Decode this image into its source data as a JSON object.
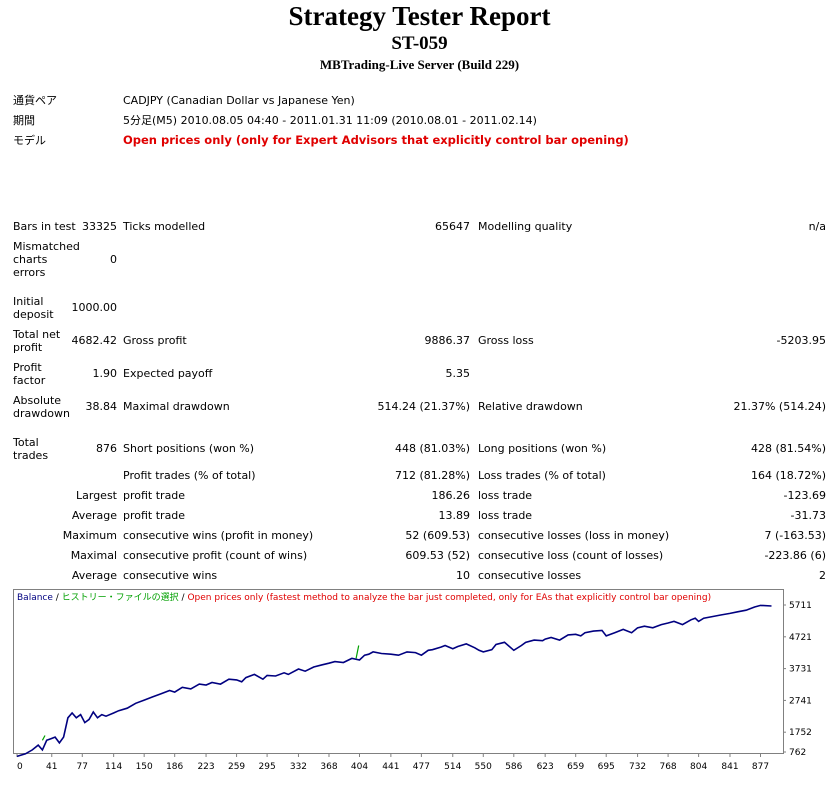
{
  "report": {
    "title": "Strategy Tester Report",
    "subtitle": "ST-059",
    "server": "MBTrading-Live Server (Build 229)"
  },
  "settings": {
    "symbol_label": "通貨ペア",
    "symbol_value": "CADJPY (Canadian Dollar vs Japanese Yen)",
    "period_label": "期間",
    "period_value": "5分足(M5) 2010.08.05 04:40 - 2011.01.31 11:09 (2010.08.01 - 2011.02.14)",
    "model_label": "モデル",
    "model_value": "Open prices only (only for Expert Advisors that explicitly control bar opening)"
  },
  "stats": {
    "bars_in_test_label": "Bars in test",
    "bars_in_test": "33325",
    "ticks_modelled_label": "Ticks modelled",
    "ticks_modelled": "65647",
    "modelling_quality_label": "Modelling quality",
    "modelling_quality": "n/a",
    "mismatched_label_1": "Mismatched",
    "mismatched_label_2": "charts",
    "mismatched_label_3": "errors",
    "mismatched": "0",
    "initial_deposit_label_1": "Initial",
    "initial_deposit_label_2": "deposit",
    "initial_deposit": "1000.00",
    "total_net_profit_label_1": "Total net",
    "total_net_profit_label_2": "profit",
    "total_net_profit": "4682.42",
    "gross_profit_label": "Gross profit",
    "gross_profit": "9886.37",
    "gross_loss_label": "Gross loss",
    "gross_loss": "-5203.95",
    "profit_factor_label_1": "Profit",
    "profit_factor_label_2": "factor",
    "profit_factor": "1.90",
    "expected_payoff_label": "Expected payoff",
    "expected_payoff": "5.35",
    "absolute_drawdown_label_1": "Absolute",
    "absolute_drawdown_label_2": "drawdown",
    "absolute_drawdown": "38.84",
    "maximal_drawdown_label": "Maximal drawdown",
    "maximal_drawdown": "514.24 (21.37%)",
    "relative_drawdown_label": "Relative drawdown",
    "relative_drawdown": "21.37% (514.24)",
    "total_trades_label_1": "Total",
    "total_trades_label_2": "trades",
    "total_trades": "876",
    "short_positions_label": "Short positions (won %)",
    "short_positions": "448 (81.03%)",
    "long_positions_label": "Long positions (won %)",
    "long_positions": "428 (81.54%)",
    "profit_trades_label": "Profit trades (% of total)",
    "profit_trades": "712 (81.28%)",
    "loss_trades_label": "Loss trades (% of total)",
    "loss_trades": "164 (18.72%)",
    "largest_label": "Largest",
    "largest_profit_label": "profit trade",
    "largest_profit": "186.26",
    "largest_loss_label": "loss trade",
    "largest_loss": "-123.69",
    "average_label": "Average",
    "average_profit_label": "profit trade",
    "average_profit": "13.89",
    "average_loss_label": "loss trade",
    "average_loss": "-31.73",
    "maximum_label": "Maximum",
    "max_consec_wins_label": "consecutive wins (profit in money)",
    "max_consec_wins": "52 (609.53)",
    "max_consec_losses_label": "consecutive losses (loss in money)",
    "max_consec_losses": "7 (-163.53)",
    "maximal_label": "Maximal",
    "maximal_consec_profit_label": "consecutive profit (count of wins)",
    "maximal_consec_profit": "609.53 (52)",
    "maximal_consec_loss_label": "consecutive loss (count of losses)",
    "maximal_consec_loss": "-223.86 (6)",
    "average2_label": "Average",
    "avg_consec_wins_label": "consecutive wins",
    "avg_consec_wins": "10",
    "avg_consec_losses_label": "consecutive losses",
    "avg_consec_losses": "2"
  },
  "chart_data": {
    "type": "line",
    "legend": {
      "balance": "Balance",
      "sep1": " / ",
      "history": "ヒストリー・ファイルの選択",
      "sep2": " / ",
      "model": "Open prices only (fastest method to analyze the bar just completed, only for EAs that explicitly control bar opening)"
    },
    "legend_colors": {
      "balance": "#000080",
      "history": "#00a000",
      "model": "#e00000"
    },
    "x_ticks": [
      "0",
      "41",
      "77",
      "114",
      "150",
      "186",
      "223",
      "259",
      "295",
      "332",
      "368",
      "404",
      "441",
      "477",
      "514",
      "550",
      "586",
      "623",
      "659",
      "695",
      "732",
      "768",
      "804",
      "841",
      "877"
    ],
    "y_ticks": [
      "5711",
      "4721",
      "3731",
      "2741",
      "1752",
      "762"
    ],
    "ylim": [
      762,
      5711
    ],
    "xlim": [
      0,
      900
    ],
    "series": [
      {
        "color": "#000080",
        "x": [
          0,
          10,
          18,
          25,
          30,
          35,
          40,
          45,
          50,
          55,
          60,
          65,
          70,
          75,
          80,
          85,
          90,
          95,
          100,
          105,
          114,
          120,
          130,
          140,
          150,
          160,
          170,
          180,
          186,
          195,
          205,
          215,
          223,
          230,
          240,
          250,
          259,
          265,
          270,
          280,
          290,
          295,
          305,
          315,
          320,
          332,
          340,
          350,
          360,
          368,
          375,
          385,
          395,
          404,
          410,
          415,
          420,
          430,
          441,
          450,
          460,
          470,
          477,
          485,
          490,
          500,
          505,
          514,
          520,
          530,
          540,
          545,
          550,
          560,
          565,
          575,
          586,
          595,
          600,
          610,
          620,
          623,
          630,
          640,
          650,
          659,
          665,
          670,
          680,
          690,
          695,
          705,
          715,
          725,
          732,
          740,
          750,
          760,
          768,
          775,
          785,
          795,
          800,
          804,
          810,
          820,
          830,
          841,
          850,
          860,
          870,
          877,
          890
        ],
        "y": [
          1000,
          1080,
          1200,
          1350,
          1200,
          1500,
          1550,
          1600,
          1420,
          1600,
          2200,
          2350,
          2200,
          2300,
          2050,
          2150,
          2380,
          2200,
          2300,
          2250,
          2350,
          2420,
          2500,
          2650,
          2750,
          2850,
          2950,
          3050,
          3000,
          3150,
          3100,
          3250,
          3220,
          3300,
          3250,
          3400,
          3380,
          3320,
          3450,
          3550,
          3400,
          3520,
          3500,
          3600,
          3550,
          3720,
          3650,
          3780,
          3850,
          3900,
          3950,
          3920,
          4050,
          4000,
          4150,
          4180,
          4250,
          4200,
          4180,
          4150,
          4250,
          4230,
          4150,
          4300,
          4320,
          4400,
          4450,
          4350,
          4420,
          4500,
          4380,
          4300,
          4250,
          4320,
          4480,
          4550,
          4300,
          4450,
          4550,
          4620,
          4600,
          4650,
          4700,
          4620,
          4780,
          4800,
          4750,
          4850,
          4900,
          4920,
          4750,
          4850,
          4950,
          4850,
          5000,
          5050,
          5000,
          5100,
          5150,
          5200,
          5100,
          5250,
          5300,
          5200,
          5300,
          5350,
          5400,
          5450,
          5500,
          5550,
          5650,
          5700,
          5680
        ]
      }
    ]
  }
}
